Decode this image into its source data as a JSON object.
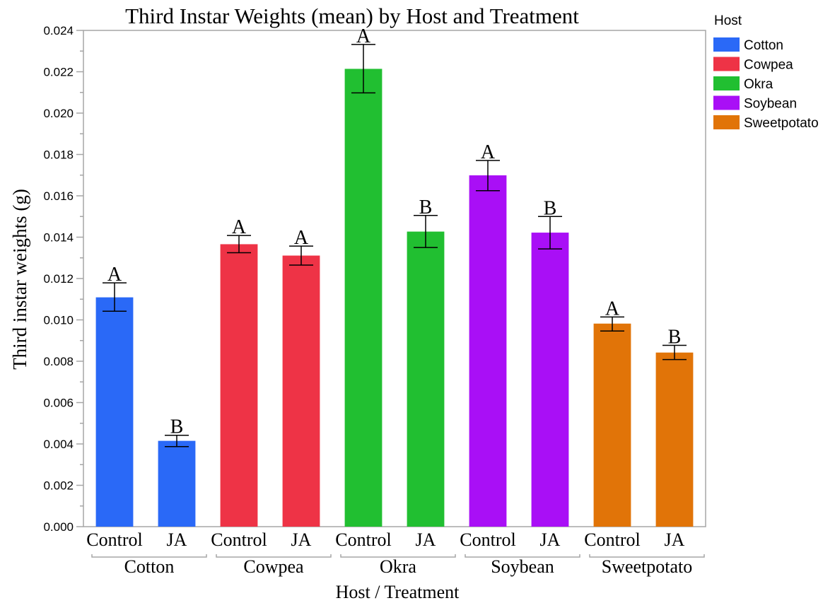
{
  "chart_data": {
    "type": "bar",
    "title": "Third Instar Weights (mean) by Host and Treatment",
    "xlabel": "Host / Treatment",
    "ylabel": "Third instar weights (g)",
    "ylim": [
      0,
      0.024
    ],
    "y_ticks": [
      "0.000",
      "0.002",
      "0.004",
      "0.006",
      "0.008",
      "0.010",
      "0.012",
      "0.014",
      "0.016",
      "0.018",
      "0.020",
      "0.022",
      "0.024"
    ],
    "y_tick_values": [
      0,
      0.002,
      0.004,
      0.006,
      0.008,
      0.01,
      0.012,
      0.014,
      0.016,
      0.018,
      0.02,
      0.022,
      0.024
    ],
    "grid": false,
    "legend": {
      "title": "Host",
      "placement": "right",
      "items": [
        {
          "label": "Cotton",
          "color": "#2a69f7"
        },
        {
          "label": "Cowpea",
          "color": "#ee3346"
        },
        {
          "label": "Okra",
          "color": "#21bf31"
        },
        {
          "label": "Soybean",
          "color": "#a90ff6"
        },
        {
          "label": "Sweetpotato",
          "color": "#e17408"
        }
      ]
    },
    "groups": [
      {
        "host": "Cotton",
        "color": "#2a69f7",
        "bars": [
          {
            "treatment": "Control",
            "value": 0.01109,
            "err_low": 0.01042,
            "err_high": 0.01179,
            "letter": "A"
          },
          {
            "treatment": "JA",
            "value": 0.00415,
            "err_low": 0.00387,
            "err_high": 0.00442,
            "letter": "B"
          }
        ]
      },
      {
        "host": "Cowpea",
        "color": "#ee3346",
        "bars": [
          {
            "treatment": "Control",
            "value": 0.01366,
            "err_low": 0.01325,
            "err_high": 0.01408,
            "letter": "A"
          },
          {
            "treatment": "JA",
            "value": 0.01311,
            "err_low": 0.01265,
            "err_high": 0.01357,
            "letter": "A"
          }
        ]
      },
      {
        "host": "Okra",
        "color": "#21bf31",
        "bars": [
          {
            "treatment": "Control",
            "value": 0.02214,
            "err_low": 0.02098,
            "err_high": 0.02332,
            "letter": "A"
          },
          {
            "treatment": "JA",
            "value": 0.01427,
            "err_low": 0.0135,
            "err_high": 0.01505,
            "letter": "B"
          }
        ]
      },
      {
        "host": "Soybean",
        "color": "#a90ff6",
        "bars": [
          {
            "treatment": "Control",
            "value": 0.01699,
            "err_low": 0.01625,
            "err_high": 0.01771,
            "letter": "A"
          },
          {
            "treatment": "JA",
            "value": 0.01422,
            "err_low": 0.01343,
            "err_high": 0.015,
            "letter": "B"
          }
        ]
      },
      {
        "host": "Sweetpotato",
        "color": "#e17408",
        "bars": [
          {
            "treatment": "Control",
            "value": 0.00982,
            "err_low": 0.00946,
            "err_high": 0.01014,
            "letter": "A"
          },
          {
            "treatment": "JA",
            "value": 0.00842,
            "err_low": 0.00808,
            "err_high": 0.00877,
            "letter": "B"
          }
        ]
      }
    ]
  }
}
